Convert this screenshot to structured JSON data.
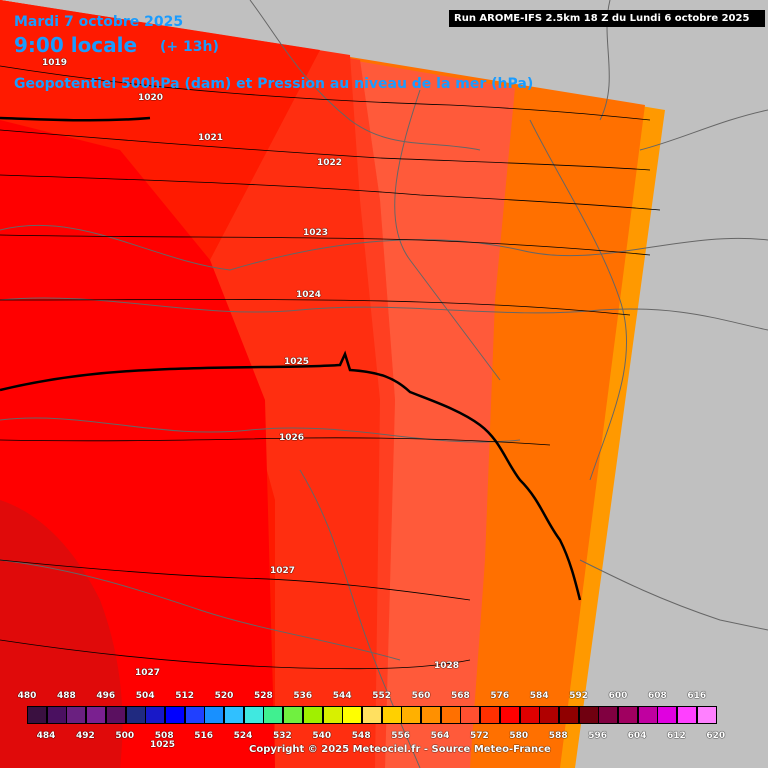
{
  "header": {
    "date": "Mardi 7 octobre 2025",
    "local_time": "9:00 locale",
    "lead_time": "(+ 13h)",
    "field_title": "Geopotentiel 500hPa (dam) et Pression au niveau de la mer (hPa)",
    "run_info": "Run AROME-IFS 2.5km 18 Z du Lundi 6 octobre 2025"
  },
  "isobars": [
    "1019",
    "1020",
    "1021",
    "1022",
    "1023",
    "1024",
    "1025",
    "1026",
    "1027",
    "1027",
    "1028",
    "1025"
  ],
  "legend": {
    "top_values": [
      "480",
      "488",
      "496",
      "504",
      "512",
      "520",
      "528",
      "536",
      "544",
      "552",
      "560",
      "568",
      "576",
      "584",
      "592",
      "600",
      "608",
      "616"
    ],
    "bottom_values": [
      "484",
      "492",
      "500",
      "508",
      "516",
      "524",
      "532",
      "540",
      "548",
      "556",
      "564",
      "572",
      "580",
      "588",
      "596",
      "604",
      "612",
      "620"
    ],
    "colors": [
      "#3a1040",
      "#4a1060",
      "#6a2080",
      "#7a2090",
      "#5a1060",
      "#202a80",
      "#1818c8",
      "#0000ff",
      "#2040ff",
      "#1890ff",
      "#30c0ff",
      "#40e8e0",
      "#40f090",
      "#70f040",
      "#a0f000",
      "#d8f000",
      "#ffff00",
      "#ffe060",
      "#ffd000",
      "#ffb000",
      "#ff9000",
      "#ff7000",
      "#ff5030",
      "#ff3000",
      "#ff0000",
      "#e00000",
      "#b00000",
      "#900000",
      "#700010",
      "#800040",
      "#a00060",
      "#c000a0",
      "#e000e0",
      "#ff40ff",
      "#ff80ff"
    ]
  },
  "copyright": "Copyright © 2025 Meteociel.fr - Source Meteo-France"
}
